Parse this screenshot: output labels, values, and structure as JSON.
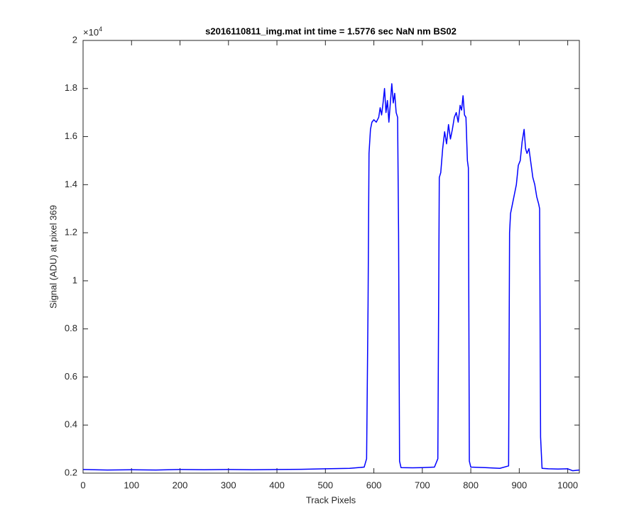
{
  "chart_data": {
    "type": "line",
    "title": "s2016110811_img.mat int time = 1.5776 sec  NaN nm BS02",
    "x_label": "Track Pixels",
    "y_label": "Signal (ADU) at pixel 369",
    "y_multiplier": "×10",
    "y_exponent": "4",
    "xlim": [
      0,
      1024
    ],
    "ylim": [
      2000,
      20000
    ],
    "xticks": [
      0,
      100,
      200,
      300,
      400,
      500,
      600,
      700,
      800,
      900,
      1000
    ],
    "yticks": [
      {
        "value": 2000,
        "label": "0.2"
      },
      {
        "value": 4000,
        "label": "0.4"
      },
      {
        "value": 6000,
        "label": "0.6"
      },
      {
        "value": 8000,
        "label": "0.8"
      },
      {
        "value": 10000,
        "label": "1"
      },
      {
        "value": 12000,
        "label": "1.2"
      },
      {
        "value": 14000,
        "label": "1.4"
      },
      {
        "value": 16000,
        "label": "1.6"
      },
      {
        "value": 18000,
        "label": "1.8"
      },
      {
        "value": 20000,
        "label": "2"
      }
    ],
    "grid": false,
    "color": "#0000ff",
    "x": [
      0,
      50,
      100,
      150,
      200,
      250,
      300,
      350,
      400,
      450,
      500,
      550,
      580,
      585,
      588,
      590,
      593,
      596,
      600,
      605,
      610,
      613,
      616,
      619,
      622,
      625,
      628,
      631,
      634,
      637,
      640,
      643,
      646,
      649,
      651,
      653,
      656,
      680,
      700,
      725,
      732,
      735,
      738,
      742,
      746,
      750,
      754,
      758,
      762,
      766,
      770,
      774,
      778,
      781,
      784,
      787,
      790,
      793,
      795,
      797,
      800,
      830,
      860,
      878,
      880,
      882,
      886,
      890,
      894,
      898,
      902,
      906,
      910,
      913,
      916,
      920,
      924,
      928,
      932,
      936,
      940,
      942,
      944,
      947,
      960,
      980,
      1000,
      1010,
      1024
    ],
    "values": [
      2150,
      2130,
      2140,
      2130,
      2150,
      2140,
      2150,
      2140,
      2150,
      2160,
      2180,
      2200,
      2250,
      2600,
      9000,
      15300,
      16300,
      16600,
      16700,
      16600,
      16800,
      17200,
      16900,
      17400,
      18000,
      17000,
      17500,
      16600,
      17400,
      18200,
      17400,
      17800,
      17000,
      16800,
      12000,
      2500,
      2230,
      2220,
      2230,
      2250,
      2600,
      14300,
      14500,
      15500,
      16200,
      15700,
      16500,
      15900,
      16300,
      16800,
      17000,
      16600,
      17300,
      17100,
      17700,
      16900,
      16800,
      15000,
      14700,
      2500,
      2250,
      2230,
      2200,
      2300,
      12000,
      12800,
      13200,
      13600,
      14000,
      14800,
      15000,
      15800,
      16300,
      15500,
      15300,
      15500,
      14900,
      14300,
      14000,
      13500,
      13200,
      13000,
      3500,
      2200,
      2180,
      2170,
      2180,
      2100,
      2130
    ]
  }
}
